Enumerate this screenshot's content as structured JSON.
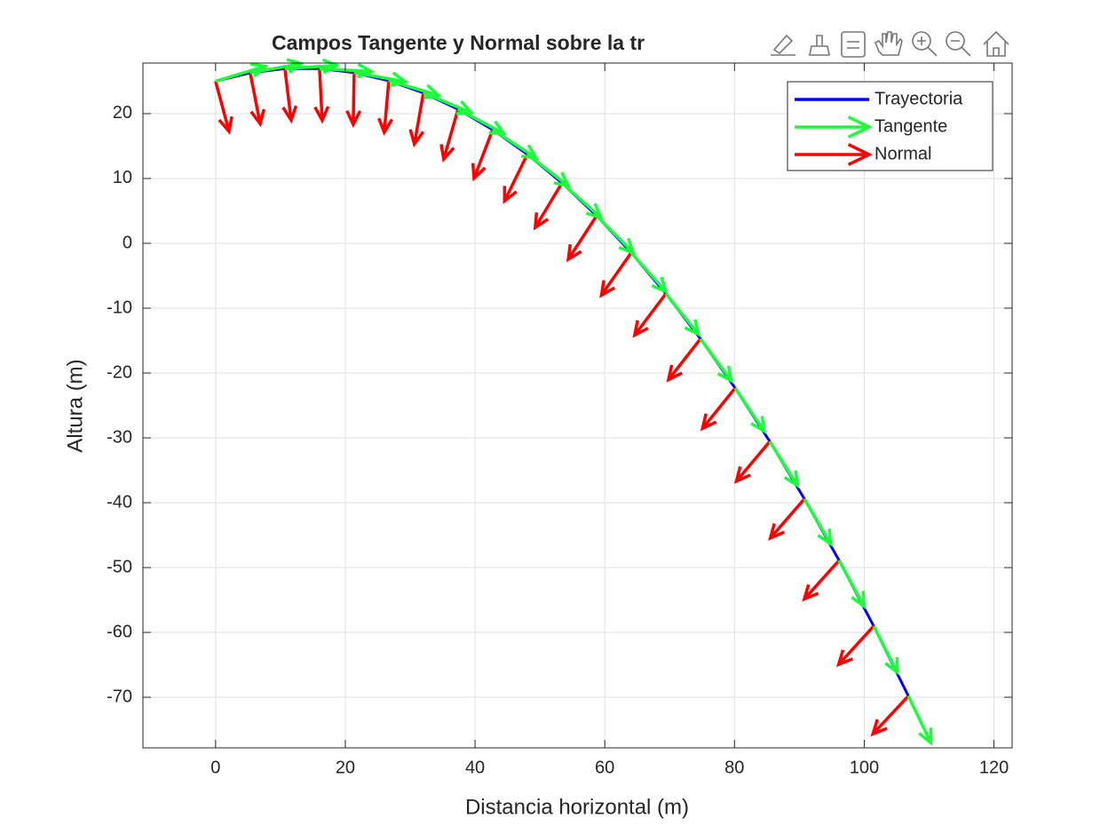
{
  "chart_data": {
    "type": "quiver",
    "title": "Campos Tangente y Normal sobre la tr",
    "xlabel": "Distancia horizontal (m)",
    "ylabel": "Altura (m)",
    "x": [
      0,
      5.34,
      10.68,
      16.02,
      21.36,
      26.7,
      32.04,
      37.38,
      42.72,
      48.06,
      53.4,
      58.74,
      64.08,
      69.42,
      74.76,
      80.1,
      85.44,
      90.78,
      96.12,
      101.46,
      106.8
    ],
    "y": [
      25,
      26.29,
      26.94,
      26.95,
      26.33,
      25.08,
      23.2,
      20.68,
      17.52,
      13.73,
      9.31,
      4.25,
      -1.44,
      -7.76,
      -14.72,
      -22.32,
      -30.55,
      -39.41,
      -48.9,
      -59.03,
      -69.8
    ],
    "series": [
      {
        "name": "Trayectoria",
        "color": "#0000ff"
      },
      {
        "name": "Tangente",
        "color": "#1aff3a",
        "u": [
          7.66,
          7.87,
          7.98,
          7.99,
          7.88,
          7.68,
          7.39,
          7.07,
          6.71,
          6.34,
          5.98,
          5.64,
          5.32,
          5.01,
          4.73,
          4.48,
          4.24,
          4.02,
          3.82,
          3.64,
          3.47
        ],
        "v": [
          2.3,
          1.43,
          0.5,
          -0.45,
          -1.38,
          -2.26,
          -3.05,
          -3.75,
          -4.36,
          -4.87,
          -5.31,
          -5.67,
          -5.98,
          -6.24,
          -6.45,
          -6.63,
          -6.78,
          -6.91,
          -7.03,
          -7.12,
          -7.21
        ]
      },
      {
        "name": "Normal",
        "color": "#ff0000",
        "u": [
          2.07,
          1.53,
          0.97,
          0.42,
          -0.14,
          -0.7,
          -1.39,
          -2.21,
          -2.87,
          -3.51,
          -4.12,
          -4.36,
          -4.59,
          -4.81,
          -4.93,
          -5.03,
          -5.14,
          -5.25,
          -5.35,
          -5.4,
          -5.46
        ],
        "v": [
          -7.73,
          -7.85,
          -7.94,
          -7.99,
          -8.0,
          -7.97,
          -7.88,
          -7.69,
          -7.47,
          -7.19,
          -6.86,
          -6.71,
          -6.55,
          -6.39,
          -6.3,
          -6.22,
          -6.13,
          -6.04,
          -5.95,
          -5.9,
          -5.85
        ]
      }
    ],
    "xlim": [
      -11.2,
      122.8
    ],
    "ylim": [
      -77.8,
      27.8
    ],
    "xticks": [
      0,
      20,
      40,
      60,
      80,
      100,
      120
    ],
    "yticks": [
      -70,
      -60,
      -50,
      -40,
      -30,
      -20,
      -10,
      0,
      10,
      20
    ],
    "grid": true,
    "legend": "northeast"
  }
}
